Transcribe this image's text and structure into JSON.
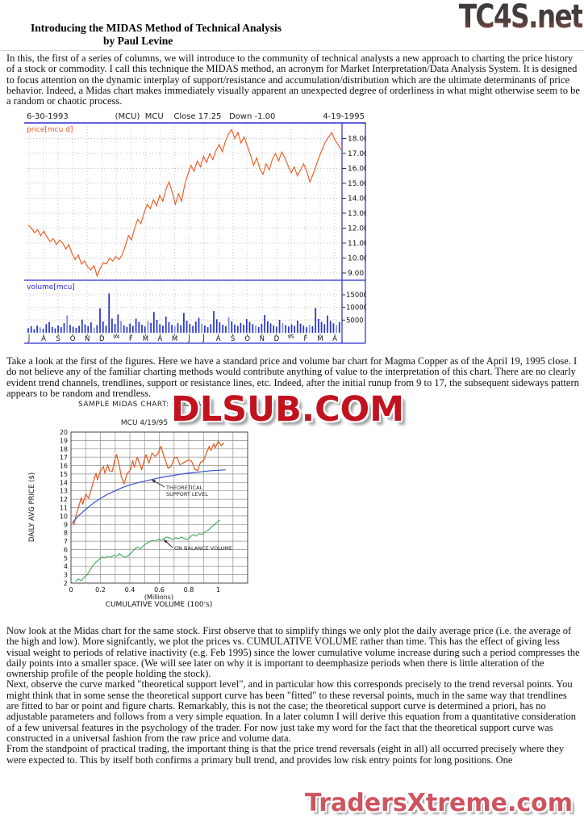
{
  "branding": {
    "top_logo": "TC4S.net",
    "bottom_logo": "TradersXtreme.com",
    "watermark": "DLSUB.COM"
  },
  "header": {
    "title": "Introducing the MIDAS Method of Technical Analysis",
    "byline": "by Paul Levine"
  },
  "paragraphs": {
    "p1": "In this, the first of a series of columns, we will introduce to the community of technical analysts a new approach to charting the price history of a stock or commodity. I call this technique the MIDAS method, an acronym for Market Interpretation/Data Analysis System. It is designed to focus attention on the dynamic interplay of support/resistance and accumulation/distribution which are the ultimate determinants of price behavior. Indeed, a Midas chart makes immediately visually apparent an unexpected degree of orderliness in what might otherwise seem to be a random or chaotic process.",
    "p2": "Take a look at the first of the figures. Here we have a standard price and volume bar chart for Magma Copper as of the April 19, 1995 close. I do not believe any of the familiar charting methods would contribute anything of value to the interpretation of this chart. There are no clearly evident trend channels, trendlines, support or resistance lines, etc. Indeed, after the initial runup from 9 to 17, the subsequent sideways pattern appears to be random and trendless.",
    "p3": "Now look at the Midas chart for the same stock. First observe that to simplify things we only plot the daily average price (i.e. the average of the high and low). More signifcantly, we plot the prices vs. CUMULATIVE VOLUME rather than time. This has the effect of giving less visual weight to periods of relative inactivity (e.g. Feb 1995) since the lower cumulative volume increase during such a period compresses the daily points into a smaller space. (We will see later on why it is important to deemphasize periods when there is little alteration of the ownership profile of the people holding the stock).",
    "p4": "Next, observe the curve marked \"theoretical support level\", and in particular how this corresponds precisely to the trend reversal points. You might think that in some sense the theoretical support curve has been \"fitted\" to these reversal points, much in the same way that trendlines are fitted to bar or point and figure charts. Remarkably, this is not the case; the theoretical support curve is determined a priori, has no adjustable parameters and follows from a very simple equation. In a later column I will derive this equation from a quantitative consideration of a few universal features in the psychology of the trader. For now just take my word for the fact that the theoretical support curve was constructed in a universal fashion from the raw price and volume data.",
    "p5": "From the standpoint of practical trading, the important thing is that the price trend reversals (eight in all) all occurred precisely where they were expected to. This by itself both confirms a primary bull trend, and provides low risk entry points for long positions. One"
  },
  "chart_data": [
    {
      "type": "line+bar",
      "header_left": "6-30-1993",
      "header_center": "(MCU)  MCU    Close 17.25   Down -1.00",
      "header_right": "4-19-1995",
      "price_label": "price[mcu d]",
      "volume_label": "volume[mcu]",
      "price_yticks": [
        18,
        17,
        16,
        15,
        14,
        13,
        12,
        11,
        10,
        9
      ],
      "volume_yticks": [
        15000,
        10000,
        5000
      ],
      "price_ylim": [
        8.5,
        19.3
      ],
      "volume_ylim": [
        0,
        15600
      ],
      "x_labels": [
        "J",
        "A",
        "S",
        "O",
        "N",
        "D",
        "94",
        "F",
        "M",
        "A",
        "M",
        "J",
        "J",
        "A",
        "S",
        "O",
        "N",
        "D",
        "95",
        "F",
        "M",
        "A"
      ],
      "price_values": [
        12.2,
        12.0,
        11.7,
        11.9,
        11.5,
        11.8,
        11.4,
        11.1,
        11.3,
        10.9,
        11.2,
        11.0,
        10.6,
        10.9,
        10.3,
        9.9,
        10.2,
        9.6,
        9.8,
        9.4,
        9.2,
        9.5,
        8.8,
        9.3,
        9.7,
        9.6,
        10.0,
        9.8,
        10.1,
        9.9,
        10.2,
        10.8,
        11.5,
        11.2,
        12.0,
        12.6,
        12.3,
        13.0,
        13.6,
        13.3,
        13.9,
        13.5,
        14.2,
        13.8,
        14.6,
        15.1,
        14.4,
        13.6,
        14.3,
        13.8,
        14.9,
        15.6,
        16.2,
        15.8,
        16.5,
        16.1,
        16.8,
        16.4,
        17.0,
        16.6,
        17.2,
        17.6,
        17.1,
        17.8,
        18.3,
        18.6,
        18.0,
        18.4,
        17.7,
        18.1,
        17.5,
        16.9,
        16.2,
        16.7,
        16.0,
        15.6,
        16.3,
        15.9,
        16.6,
        17.0,
        16.5,
        17.1,
        16.7,
        16.2,
        15.7,
        16.1,
        15.5,
        15.9,
        16.3,
        15.8,
        15.1,
        15.6,
        16.2,
        16.8,
        17.3,
        17.8,
        18.1,
        18.4,
        17.9,
        17.6,
        17.25
      ],
      "volume_values": [
        1800,
        2600,
        1400,
        2800,
        2100,
        1600,
        3400,
        4200,
        2300,
        1700,
        2900,
        2200,
        3800,
        6800,
        3100,
        2400,
        1900,
        2700,
        5200,
        3300,
        2600,
        4100,
        2000,
        3000,
        9700,
        4400,
        2800,
        15500,
        5600,
        3500,
        7200,
        4600,
        2900,
        2300,
        3600,
        2700,
        5600,
        4300,
        3200,
        2500,
        4700,
        3900,
        8200,
        5100,
        3400,
        2800,
        6400,
        4200,
        3100,
        2600,
        3800,
        3000,
        7800,
        4800,
        3500,
        2700,
        4400,
        5900,
        3600,
        2900,
        2200,
        3400,
        8600,
        5300,
        4100,
        3200,
        2600,
        6200,
        4500,
        3300,
        2700,
        3900,
        3100,
        5400,
        4200,
        3400,
        2800,
        2300,
        3500,
        7000,
        4600,
        3700,
        2900,
        2400,
        5100,
        3800,
        3000,
        2500,
        3300,
        2700,
        4800,
        3600,
        2800,
        2200,
        3100,
        2600,
        9800,
        5500,
        4300,
        3400,
        6800,
        4700,
        3700,
        3000,
        4200
      ]
    },
    {
      "type": "line",
      "title": "SAMPLE MIDAS CHART: MAGMA",
      "subtitle": "MCU   4/19/95",
      "ylabel": "DAILY AVG PRICE ($)",
      "xlabel_units": "(Millions)",
      "xlabel": "CUMULATIVE VOLUME (100's)",
      "ylim": [
        2,
        20
      ],
      "xlim": [
        0,
        1.2
      ],
      "yticks": [
        20,
        19,
        18,
        17,
        16,
        15,
        14,
        13,
        12,
        11,
        10,
        9,
        8,
        7,
        6,
        5,
        4,
        3,
        2
      ],
      "xticks": [
        0,
        0.2,
        0.4,
        0.6,
        0.8,
        1
      ],
      "xtick_labels": [
        "0",
        "0.2",
        "0.4",
        "0.6",
        "0.8",
        "1"
      ],
      "series": [
        {
          "name": "daily average price",
          "color": "#e8581d",
          "width": 1.2,
          "points": [
            [
              0.01,
              9.2
            ],
            [
              0.02,
              9.0
            ],
            [
              0.04,
              10.4
            ],
            [
              0.06,
              11.6
            ],
            [
              0.07,
              12.2
            ],
            [
              0.08,
              11.4
            ],
            [
              0.1,
              12.6
            ],
            [
              0.12,
              12.1
            ],
            [
              0.14,
              13.3
            ],
            [
              0.15,
              14.0
            ],
            [
              0.17,
              15.1
            ],
            [
              0.18,
              14.3
            ],
            [
              0.2,
              15.4
            ],
            [
              0.22,
              15.9
            ],
            [
              0.23,
              15.1
            ],
            [
              0.25,
              16.1
            ],
            [
              0.26,
              15.4
            ],
            [
              0.28,
              15.3
            ],
            [
              0.3,
              16.9
            ],
            [
              0.31,
              17.3
            ],
            [
              0.33,
              15.9
            ],
            [
              0.34,
              14.8
            ],
            [
              0.36,
              13.8
            ],
            [
              0.38,
              15.0
            ],
            [
              0.4,
              15.4
            ],
            [
              0.42,
              16.6
            ],
            [
              0.43,
              15.8
            ],
            [
              0.45,
              17.0
            ],
            [
              0.47,
              16.1
            ],
            [
              0.48,
              15.5
            ],
            [
              0.5,
              16.8
            ],
            [
              0.51,
              17.3
            ],
            [
              0.53,
              16.3
            ],
            [
              0.55,
              17.5
            ],
            [
              0.57,
              17.1
            ],
            [
              0.59,
              17.4
            ],
            [
              0.61,
              18.3
            ],
            [
              0.63,
              17.2
            ],
            [
              0.65,
              16.2
            ],
            [
              0.66,
              15.7
            ],
            [
              0.68,
              15.9
            ],
            [
              0.7,
              16.9
            ],
            [
              0.72,
              17.0
            ],
            [
              0.74,
              16.1
            ],
            [
              0.76,
              16.3
            ],
            [
              0.78,
              16.5
            ],
            [
              0.8,
              16.7
            ],
            [
              0.82,
              16.5
            ],
            [
              0.84,
              15.6
            ],
            [
              0.86,
              15.4
            ],
            [
              0.88,
              16.4
            ],
            [
              0.9,
              16.6
            ],
            [
              0.92,
              17.5
            ],
            [
              0.94,
              18.3
            ],
            [
              0.95,
              17.8
            ],
            [
              0.97,
              18.6
            ],
            [
              0.98,
              18.1
            ],
            [
              1.0,
              18.9
            ],
            [
              1.02,
              18.4
            ],
            [
              1.04,
              18.7
            ]
          ]
        },
        {
          "name": "theoretical support level",
          "color": "#3a4fd0",
          "width": 1.2,
          "points": [
            [
              0.01,
              9.2
            ],
            [
              0.05,
              10.0
            ],
            [
              0.1,
              10.8
            ],
            [
              0.15,
              11.5
            ],
            [
              0.2,
              12.1
            ],
            [
              0.25,
              12.6
            ],
            [
              0.3,
              13.0
            ],
            [
              0.35,
              13.4
            ],
            [
              0.4,
              13.7
            ],
            [
              0.45,
              13.95
            ],
            [
              0.5,
              14.15
            ],
            [
              0.55,
              14.35
            ],
            [
              0.6,
              14.55
            ],
            [
              0.65,
              14.7
            ],
            [
              0.7,
              14.85
            ],
            [
              0.75,
              15.0
            ],
            [
              0.8,
              15.1
            ],
            [
              0.85,
              15.2
            ],
            [
              0.9,
              15.3
            ],
            [
              0.95,
              15.4
            ],
            [
              1.0,
              15.45
            ],
            [
              1.05,
              15.5
            ]
          ]
        },
        {
          "name": "on balance volume",
          "color": "#2f9e44",
          "width": 1.0,
          "points": [
            [
              0.03,
              2.2
            ],
            [
              0.05,
              2.5
            ],
            [
              0.07,
              2.3
            ],
            [
              0.09,
              2.7
            ],
            [
              0.11,
              3.0
            ],
            [
              0.13,
              3.6
            ],
            [
              0.15,
              4.1
            ],
            [
              0.17,
              4.5
            ],
            [
              0.19,
              4.8
            ],
            [
              0.21,
              5.1
            ],
            [
              0.23,
              5.0
            ],
            [
              0.25,
              5.2
            ],
            [
              0.27,
              5.1
            ],
            [
              0.29,
              5.3
            ],
            [
              0.31,
              5.2
            ],
            [
              0.33,
              5.5
            ],
            [
              0.35,
              5.2
            ],
            [
              0.37,
              5.1
            ],
            [
              0.39,
              5.3
            ],
            [
              0.41,
              5.6
            ],
            [
              0.43,
              6.0
            ],
            [
              0.45,
              6.3
            ],
            [
              0.47,
              6.1
            ],
            [
              0.49,
              6.4
            ],
            [
              0.51,
              6.7
            ],
            [
              0.53,
              6.9
            ],
            [
              0.55,
              7.1
            ],
            [
              0.57,
              7.0
            ],
            [
              0.59,
              7.2
            ],
            [
              0.61,
              7.1
            ],
            [
              0.63,
              7.3
            ],
            [
              0.65,
              7.5
            ],
            [
              0.67,
              7.4
            ],
            [
              0.69,
              7.2
            ],
            [
              0.71,
              7.4
            ],
            [
              0.73,
              7.3
            ],
            [
              0.75,
              7.5
            ],
            [
              0.77,
              7.3
            ],
            [
              0.79,
              7.2
            ],
            [
              0.81,
              7.5
            ],
            [
              0.83,
              7.8
            ],
            [
              0.85,
              7.6
            ],
            [
              0.87,
              7.9
            ],
            [
              0.89,
              7.8
            ],
            [
              0.91,
              8.1
            ],
            [
              0.93,
              8.3
            ],
            [
              0.95,
              8.6
            ],
            [
              0.97,
              8.9
            ],
            [
              0.99,
              9.2
            ],
            [
              1.01,
              9.5
            ]
          ]
        }
      ],
      "annotations": [
        {
          "lines": [
            "THEORETICAL",
            "SUPPORT LEVEL"
          ]
        },
        {
          "lines": [
            "ON BALANCE VOLUME"
          ]
        }
      ]
    }
  ]
}
